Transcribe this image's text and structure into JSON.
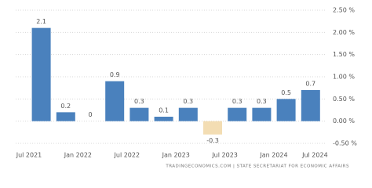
{
  "chart_data": {
    "type": "bar",
    "categories": [
      "Jul 2021",
      null,
      "Jan 2022",
      null,
      "Jul 2022",
      null,
      "Jan 2023",
      null,
      "Jul 2023",
      null,
      "Jan 2024",
      null
    ],
    "values": [
      2.1,
      0.2,
      0,
      0.9,
      0.3,
      0.1,
      0.3,
      -0.3,
      0.3,
      0.3,
      0.5,
      0.7
    ],
    "extra_xtick": "Jul 2024",
    "color": "#4a81bd",
    "negative_color": "#f3ddb3",
    "ylim": [
      -0.5,
      2.5
    ],
    "yticks": [
      {
        "value": -0.5,
        "label": "-0.50 %"
      },
      {
        "value": 0,
        "label": "0.00 %"
      },
      {
        "value": 0.5,
        "label": "0.50 %"
      },
      {
        "value": 1,
        "label": "1.00 %"
      },
      {
        "value": 1.5,
        "label": "1.50 %"
      },
      {
        "value": 2,
        "label": "2.00 %"
      },
      {
        "value": 2.5,
        "label": "2.50 %"
      }
    ],
    "grid": true,
    "source": "TRADINGECONOMICS.COM | STATE SECRETARIAT FOR ECONOMIC AFFAIRS"
  }
}
